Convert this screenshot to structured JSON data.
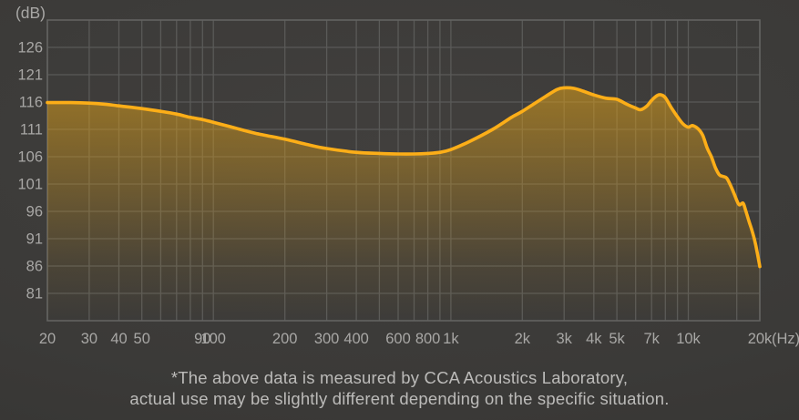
{
  "caption": {
    "line1": "*The above data is measured by CCA Acoustics Laboratory,",
    "line2": "actual use may be slightly different depending on the specific situation."
  },
  "colors": {
    "background": "#3b3a38",
    "grid": "#5a5a58",
    "border": "#636361",
    "curve": "#fcae18",
    "fill_top": "#d89c1a",
    "axis_label": "#a8a7a5",
    "caption_text": "#bcbbb9"
  },
  "chart_data": {
    "type": "line",
    "title": "",
    "x_axis_unit_label": "(Hz)",
    "y_axis_unit_label": "(dB)",
    "x_scale": "log",
    "x_range_hz": [
      20,
      20000
    ],
    "y_range_db": [
      76,
      131
    ],
    "grid": true,
    "legend": "none",
    "y_tick_labels_db": [
      126,
      121,
      116,
      111,
      106,
      101,
      96,
      91,
      86,
      81
    ],
    "x_gridlines_hz": [
      20,
      30,
      40,
      50,
      60,
      70,
      80,
      90,
      100,
      200,
      300,
      400,
      500,
      600,
      700,
      800,
      900,
      1000,
      2000,
      3000,
      4000,
      5000,
      6000,
      7000,
      8000,
      9000,
      10000,
      16000,
      20000
    ],
    "x_tick_labels": [
      {
        "hz": 20,
        "label": "20"
      },
      {
        "hz": 30,
        "label": "30"
      },
      {
        "hz": 40,
        "label": "40"
      },
      {
        "hz": 50,
        "label": "50"
      },
      {
        "hz": 90,
        "label": "90"
      },
      {
        "hz": 100,
        "label": "100"
      },
      {
        "hz": 200,
        "label": "200"
      },
      {
        "hz": 300,
        "label": "300"
      },
      {
        "hz": 400,
        "label": "400"
      },
      {
        "hz": 600,
        "label": "600"
      },
      {
        "hz": 800,
        "label": "800"
      },
      {
        "hz": 1000,
        "label": "1k"
      },
      {
        "hz": 2000,
        "label": "2k"
      },
      {
        "hz": 3000,
        "label": "3k"
      },
      {
        "hz": 4000,
        "label": "4k"
      },
      {
        "hz": 5000,
        "label": "5k"
      },
      {
        "hz": 7000,
        "label": "7k"
      },
      {
        "hz": 10000,
        "label": "10k"
      },
      {
        "hz": 20000,
        "label": "20k"
      }
    ],
    "series": [
      {
        "name": "frequency-response-curve",
        "points_hz_db": [
          [
            20,
            115.9
          ],
          [
            25,
            115.9
          ],
          [
            30,
            115.8
          ],
          [
            35,
            115.6
          ],
          [
            40,
            115.3
          ],
          [
            50,
            114.8
          ],
          [
            60,
            114.3
          ],
          [
            70,
            113.8
          ],
          [
            80,
            113.2
          ],
          [
            90,
            112.8
          ],
          [
            100,
            112.3
          ],
          [
            120,
            111.4
          ],
          [
            150,
            110.3
          ],
          [
            200,
            109.2
          ],
          [
            250,
            108.2
          ],
          [
            300,
            107.5
          ],
          [
            400,
            106.8
          ],
          [
            500,
            106.6
          ],
          [
            600,
            106.5
          ],
          [
            700,
            106.5
          ],
          [
            800,
            106.6
          ],
          [
            900,
            106.8
          ],
          [
            1000,
            107.3
          ],
          [
            1200,
            108.8
          ],
          [
            1500,
            111.0
          ],
          [
            1800,
            113.2
          ],
          [
            2000,
            114.3
          ],
          [
            2500,
            117.0
          ],
          [
            2800,
            118.3
          ],
          [
            3000,
            118.6
          ],
          [
            3300,
            118.5
          ],
          [
            3600,
            118.0
          ],
          [
            4000,
            117.3
          ],
          [
            4500,
            116.7
          ],
          [
            5000,
            116.5
          ],
          [
            5500,
            115.6
          ],
          [
            6000,
            114.9
          ],
          [
            6300,
            114.6
          ],
          [
            6700,
            115.3
          ],
          [
            7000,
            116.3
          ],
          [
            7400,
            117.2
          ],
          [
            7700,
            117.3
          ],
          [
            8000,
            116.8
          ],
          [
            8500,
            114.9
          ],
          [
            9000,
            113.3
          ],
          [
            9500,
            112.0
          ],
          [
            10000,
            111.4
          ],
          [
            10400,
            111.7
          ],
          [
            11000,
            111.1
          ],
          [
            11500,
            109.9
          ],
          [
            12000,
            107.6
          ],
          [
            12500,
            106.0
          ],
          [
            13000,
            104.0
          ],
          [
            13500,
            102.7
          ],
          [
            14000,
            102.4
          ],
          [
            14500,
            102.1
          ],
          [
            15000,
            100.9
          ],
          [
            15500,
            99.5
          ],
          [
            16000,
            98.0
          ],
          [
            16400,
            97.2
          ],
          [
            17000,
            97.5
          ],
          [
            17400,
            96.3
          ],
          [
            18000,
            94.2
          ],
          [
            18500,
            92.6
          ],
          [
            19000,
            90.8
          ],
          [
            19500,
            88.5
          ],
          [
            20000,
            85.9
          ]
        ]
      }
    ]
  }
}
